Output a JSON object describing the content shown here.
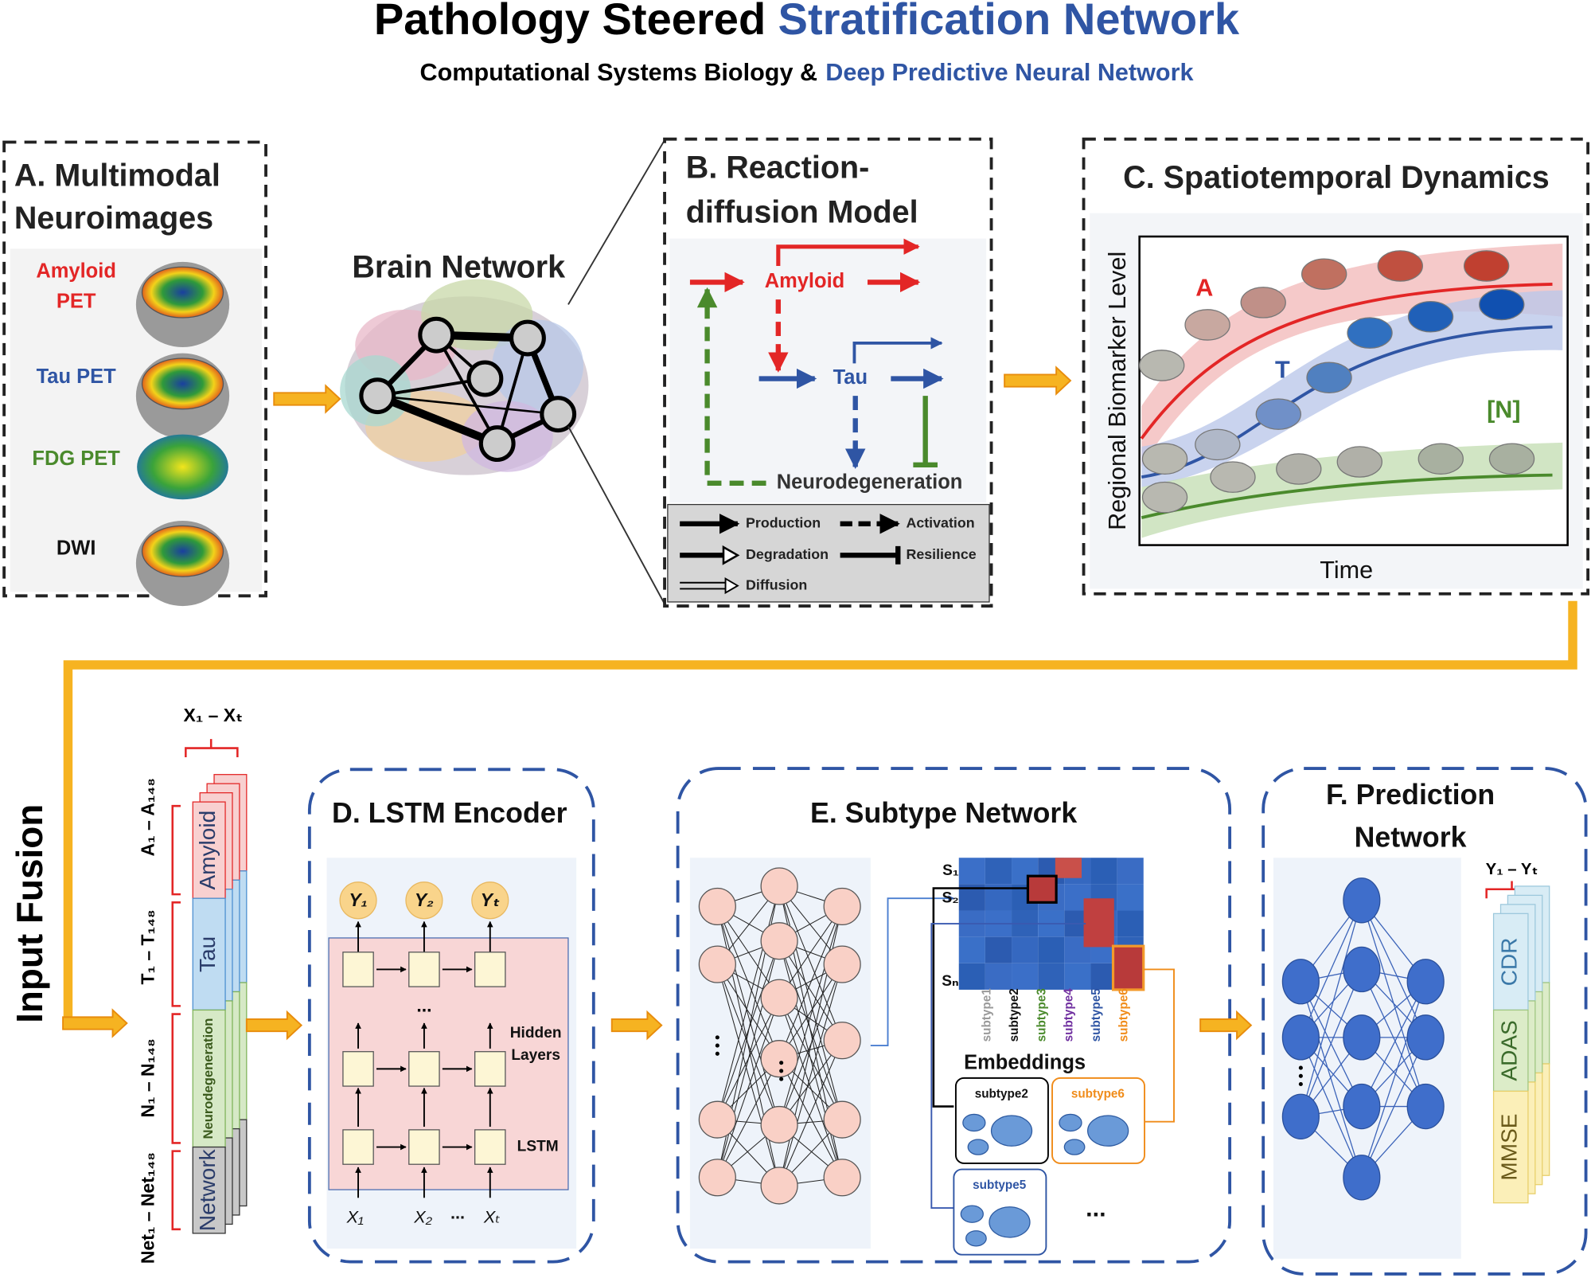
{
  "header": {
    "title_black": "Pathology Steered",
    "title_blue": "Stratification Network",
    "subtitle_black": "Computational Systems Biology &",
    "subtitle_blue": "Deep Predictive Neural Network"
  },
  "panel_a": {
    "title_lines": [
      "A. Multimodal",
      "Neuroimages"
    ],
    "modalities": [
      {
        "lines": [
          "Amyloid",
          "PET"
        ]
      },
      {
        "lines": [
          "Tau PET"
        ]
      },
      {
        "lines": [
          "FDG PET"
        ]
      },
      {
        "lines": [
          "DWI"
        ]
      }
    ]
  },
  "brain_network": {
    "label": "Brain Network"
  },
  "panel_b": {
    "title_lines": [
      "B. Reaction-",
      "diffusion Model"
    ],
    "nodes": [
      "Amyloid",
      "Tau",
      "Neurodegeneration"
    ],
    "legend": [
      "Production",
      "Activation",
      "Degradation",
      "Resilience",
      "Diffusion"
    ]
  },
  "panel_c": {
    "title": "C. Spatiotemporal Dynamics",
    "y_label": "Regional Biomarker Level",
    "x_label": "Time",
    "curves": [
      "A",
      "T",
      "[N]"
    ]
  },
  "input_fusion": {
    "label": "Input Fusion",
    "x_range": "X₁ – Xₜ",
    "groups": [
      {
        "range": "A₁ – A₁₄₈",
        "label": "Amyloid"
      },
      {
        "range": "T₁ – T₁₄₈",
        "label": "Tau"
      },
      {
        "range": "N₁ – N₁₄₈",
        "label": "Neurodegeneration"
      },
      {
        "range": "Net₁ – Net₁₄₈",
        "label": "Network"
      }
    ]
  },
  "panel_d": {
    "title": "D. LSTM Encoder",
    "outputs": [
      "Y₁",
      "Y₂",
      "Yₜ"
    ],
    "inputs": [
      "X₁",
      "X₂",
      "Xₜ"
    ],
    "input_ellipsis": "...",
    "layer_ellipsis": "...",
    "hidden_lines": [
      "Hidden",
      "Layers"
    ],
    "lstm": "LSTM"
  },
  "panel_e": {
    "title": "E. Subtype Network",
    "rows": [
      "S₁",
      "S₂",
      "Sₙ"
    ],
    "subtypes": [
      "subtype1",
      "subtype2",
      "subtype3",
      "subtype4",
      "subtype5",
      "subtype6"
    ],
    "embeddings_title": "Embeddings",
    "embedding_boxes": [
      "subtype2",
      "subtype6",
      "subtype5"
    ],
    "more": "..."
  },
  "panel_f": {
    "title_lines": [
      "F. Prediction",
      "Network"
    ],
    "y_range": "Y₁ – Yₜ",
    "outputs": [
      "CDR",
      "ADAS",
      "MMSE"
    ]
  }
}
